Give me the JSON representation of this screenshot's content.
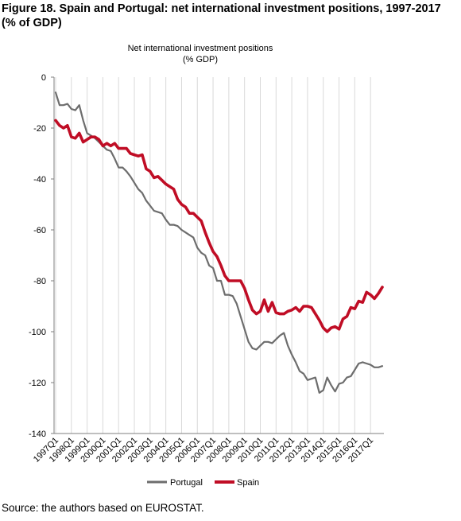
{
  "figure_title": "Figure 18. Spain and Portugal: net international investment positions, 1997-2017 (% of GDP)",
  "source": "Source: the authors based on EUROSTAT.",
  "colors": {
    "portugal": "#6d6d6d",
    "spain": "#c00d25",
    "grid": "#d9d9d9",
    "axis": "#7f7f7f"
  },
  "chart_data": {
    "type": "line",
    "title": "Net international investment positions",
    "subtitle": "(% GDP)",
    "xlabel": "",
    "ylabel": "",
    "ylim": [
      -140,
      0
    ],
    "yticks": [
      0,
      -20,
      -40,
      -60,
      -80,
      -100,
      -120,
      -140
    ],
    "grid": "vertical",
    "legend_position": "bottom",
    "x_tick_labels": [
      "1997Q1",
      "1998Q1",
      "1999Q1",
      "2000Q1",
      "2001Q1",
      "2002Q1",
      "2003Q1",
      "2004Q1",
      "2005Q1",
      "2006Q1",
      "2007Q1",
      "2008Q1",
      "2009Q1",
      "2010Q1",
      "2011Q1",
      "2012Q1",
      "2013Q1",
      "2014Q1",
      "2015Q1",
      "2016Q1",
      "2017Q1"
    ],
    "series": [
      {
        "name": "Portugal",
        "values": [
          -6,
          -11,
          -11,
          -10.5,
          -12.5,
          -13,
          -11,
          -17,
          -22,
          -23,
          -24,
          -25.5,
          -27,
          -28.5,
          -29,
          -32,
          -35.5,
          -35.5,
          -37,
          -39,
          -41.5,
          -44,
          -45.5,
          -48.5,
          -50.5,
          -52.5,
          -53,
          -53.5,
          -56,
          -58,
          -58,
          -58.5,
          -60,
          -61,
          -62,
          -63,
          -67,
          -69,
          -70,
          -74,
          -75,
          -80,
          -80,
          -85.5,
          -85.5,
          -86,
          -89,
          -94,
          -99,
          -104,
          -106.5,
          -107,
          -105.5,
          -104,
          -104,
          -104.5,
          -103,
          -101.5,
          -100.5,
          -105.5,
          -109,
          -112,
          -115.5,
          -116.5,
          -119,
          -118.5,
          -118,
          -124,
          -123,
          -118,
          -121,
          -123.5,
          -120.5,
          -120,
          -118,
          -117.5,
          -115,
          -112.5,
          -112,
          -112.5,
          -113,
          -114,
          -114,
          -113.5
        ]
      },
      {
        "name": "Spain",
        "values": [
          -17,
          -19,
          -20,
          -19,
          -23.5,
          -24,
          -22,
          -25.5,
          -24.5,
          -23.5,
          -23.5,
          -24.5,
          -27,
          -26,
          -27,
          -26,
          -28,
          -28,
          -28,
          -30,
          -30.5,
          -31,
          -30.5,
          -36,
          -37,
          -39.5,
          -39,
          -40.5,
          -42,
          -43,
          -44,
          -48,
          -50,
          -51,
          -53.5,
          -53.5,
          -55,
          -56.5,
          -61,
          -65,
          -68.5,
          -70.5,
          -74,
          -78,
          -80,
          -80,
          -80,
          -80,
          -83,
          -87.5,
          -91.5,
          -93,
          -92,
          -87.5,
          -92,
          -88.5,
          -92.5,
          -93,
          -93,
          -92,
          -91.5,
          -90.5,
          -92,
          -90,
          -90,
          -90.5,
          -93,
          -95.5,
          -98.5,
          -100,
          -98.5,
          -98,
          -99,
          -95,
          -94,
          -90.5,
          -91,
          -88,
          -88.5,
          -84.5,
          -85.5,
          -87,
          -85,
          -82.5
        ]
      }
    ]
  }
}
